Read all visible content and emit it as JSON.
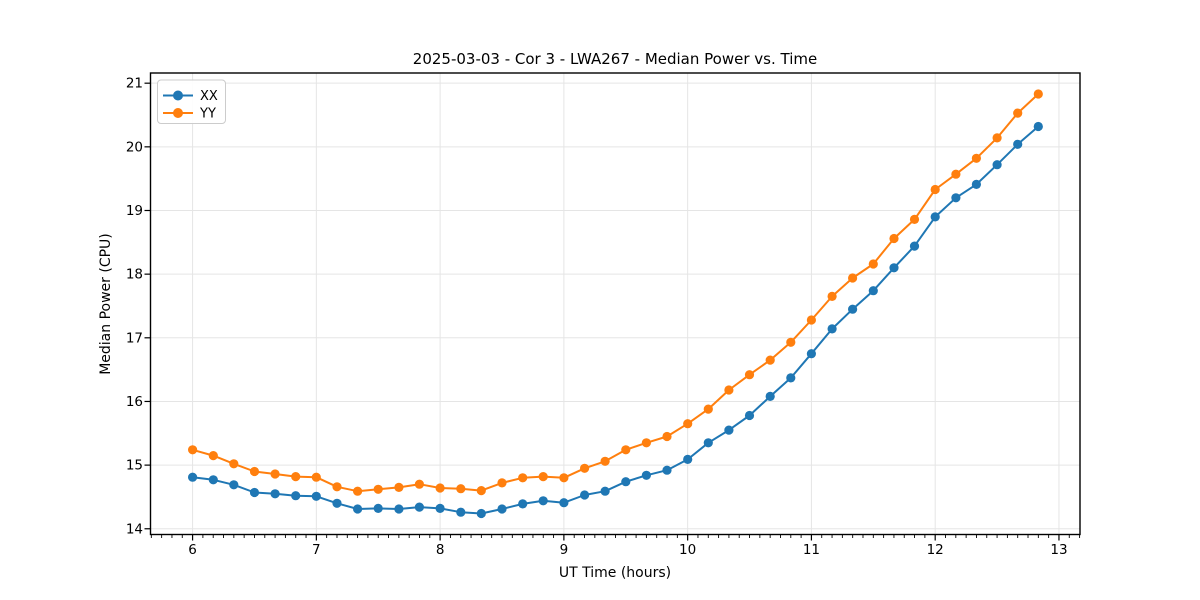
{
  "figure": {
    "background": "#ffffff",
    "plot_background": "#ffffff",
    "grid_color": "#e5e5e5",
    "spine_color": "#000000"
  },
  "chart_data": {
    "type": "line",
    "title": "2025-03-03 - Cor 3 - LWA267 - Median Power vs. Time",
    "xlabel": "UT Time (hours)",
    "ylabel": "Median Power (CPU)",
    "xlim": [
      5.66,
      13.17
    ],
    "ylim": [
      13.91,
      21.16
    ],
    "xticks": [
      6,
      7,
      8,
      9,
      10,
      11,
      12,
      13
    ],
    "yticks": [
      14,
      15,
      16,
      17,
      18,
      19,
      20,
      21
    ],
    "x_minor_step": 0.0833333,
    "grid": true,
    "legend_position": "upper-left",
    "marker": "circle",
    "x": [
      6.0,
      6.167,
      6.333,
      6.5,
      6.667,
      6.833,
      7.0,
      7.167,
      7.333,
      7.5,
      7.667,
      7.833,
      8.0,
      8.167,
      8.333,
      8.5,
      8.667,
      8.833,
      9.0,
      9.167,
      9.333,
      9.5,
      9.667,
      9.833,
      10.0,
      10.167,
      10.333,
      10.5,
      10.667,
      10.833,
      11.0,
      11.167,
      11.333,
      11.5,
      11.667,
      11.833,
      12.0,
      12.167,
      12.333,
      12.5,
      12.667,
      12.833
    ],
    "series": [
      {
        "name": "XX",
        "color": "#1f77b4",
        "values": [
          14.81,
          14.77,
          14.69,
          14.57,
          14.55,
          14.52,
          14.51,
          14.4,
          14.31,
          14.32,
          14.31,
          14.34,
          14.32,
          14.26,
          14.24,
          14.31,
          14.39,
          14.44,
          14.41,
          14.53,
          14.59,
          14.74,
          14.84,
          14.92,
          15.09,
          15.35,
          15.55,
          15.78,
          16.08,
          16.37,
          16.75,
          17.14,
          17.45,
          17.74,
          18.1,
          18.44,
          18.9,
          19.2,
          19.41,
          19.72,
          20.04,
          20.32
        ]
      },
      {
        "name": "YY",
        "color": "#ff7f0e",
        "values": [
          15.24,
          15.15,
          15.02,
          14.9,
          14.86,
          14.82,
          14.81,
          14.66,
          14.59,
          14.62,
          14.65,
          14.7,
          14.64,
          14.63,
          14.6,
          14.72,
          14.8,
          14.82,
          14.8,
          14.95,
          15.06,
          15.24,
          15.35,
          15.45,
          15.65,
          15.88,
          16.18,
          16.42,
          16.65,
          16.93,
          17.28,
          17.65,
          17.94,
          18.16,
          18.56,
          18.86,
          19.33,
          19.57,
          19.82,
          20.14,
          20.53,
          20.83
        ]
      }
    ]
  }
}
